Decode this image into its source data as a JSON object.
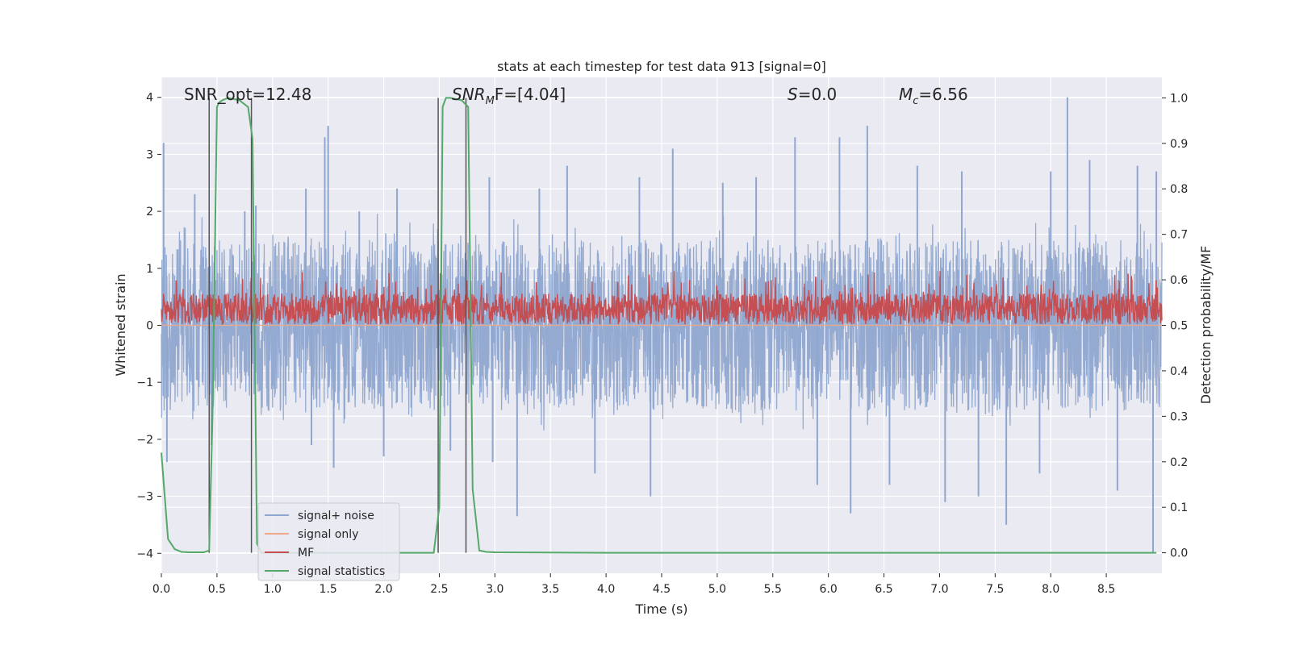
{
  "chart_data": {
    "type": "line",
    "title": "stats at each timestep for test data 913 [signal=0]",
    "xlabel": "Time (s)",
    "ylabel": "Whitened strain",
    "ylabel_right": "Detection probability/MF",
    "xlim": [
      0.0,
      9.0
    ],
    "ylim": [
      -4.35,
      4.35
    ],
    "ylim_right": [
      -0.045,
      1.045
    ],
    "x_ticks": [
      "0.0",
      "0.5",
      "1.0",
      "1.5",
      "2.0",
      "2.5",
      "3.0",
      "3.5",
      "4.0",
      "4.5",
      "5.0",
      "5.5",
      "6.0",
      "6.5",
      "7.0",
      "7.5",
      "8.0",
      "8.5"
    ],
    "x_tick_values": [
      0.0,
      0.5,
      1.0,
      1.5,
      2.0,
      2.5,
      3.0,
      3.5,
      4.0,
      4.5,
      5.0,
      5.5,
      6.0,
      6.5,
      7.0,
      7.5,
      8.0,
      8.5
    ],
    "y_ticks": [
      "4",
      "3",
      "2",
      "1",
      "0",
      "−1",
      "−2",
      "−3",
      "−4"
    ],
    "y_tick_values": [
      4,
      3,
      2,
      1,
      0,
      -1,
      -2,
      -3,
      -4
    ],
    "y_ticks_right": [
      "1.0",
      "0.9",
      "0.8",
      "0.7",
      "0.6",
      "0.5",
      "0.4",
      "0.3",
      "0.2",
      "0.1",
      "0.0"
    ],
    "y_tick_values_right": [
      1.0,
      0.9,
      0.8,
      0.7,
      0.6,
      0.5,
      0.4,
      0.3,
      0.2,
      0.1,
      0.0
    ],
    "grid": true,
    "legend_position": "lower-left",
    "annotations": [
      {
        "text": "SNR_opt=12.48",
        "x": 0.2,
        "y": 4.1
      },
      {
        "text": "F=[4.04]",
        "math_prefix": "SNR",
        "math_sub": "M",
        "x": 2.6,
        "y": 4.1
      },
      {
        "text": "=0.0",
        "math_prefix": "S",
        "math_sub": "",
        "x": 5.6,
        "y": 4.1
      },
      {
        "text": "=6.56",
        "math_prefix": "M",
        "math_sub": "c",
        "x": 6.6,
        "y": 4.1
      }
    ],
    "series": [
      {
        "name": "signal+ noise",
        "color": "#8fa6cf",
        "axis": "left",
        "kind": "dense-noise",
        "typical_band": [
          -1.5,
          1.6
        ],
        "peaks": [
          {
            "x": 0.02,
            "y": 3.2
          },
          {
            "x": 0.05,
            "y": -2.4
          },
          {
            "x": 0.3,
            "y": 2.3
          },
          {
            "x": 0.45,
            "y": -2.1
          },
          {
            "x": 0.75,
            "y": 2.0
          },
          {
            "x": 0.85,
            "y": 2.1
          },
          {
            "x": 1.3,
            "y": 2.4
          },
          {
            "x": 1.35,
            "y": -2.1
          },
          {
            "x": 1.5,
            "y": 3.5
          },
          {
            "x": 1.55,
            "y": -2.5
          },
          {
            "x": 1.47,
            "y": 3.3
          },
          {
            "x": 1.78,
            "y": 2.0
          },
          {
            "x": 2.0,
            "y": -2.3
          },
          {
            "x": 2.12,
            "y": 2.4
          },
          {
            "x": 2.6,
            "y": -2.2
          },
          {
            "x": 2.95,
            "y": 2.6
          },
          {
            "x": 2.98,
            "y": -2.4
          },
          {
            "x": 3.2,
            "y": -3.35
          },
          {
            "x": 3.4,
            "y": 2.4
          },
          {
            "x": 3.65,
            "y": 2.8
          },
          {
            "x": 3.9,
            "y": -2.6
          },
          {
            "x": 4.3,
            "y": 2.6
          },
          {
            "x": 4.4,
            "y": -3.0
          },
          {
            "x": 4.6,
            "y": 3.1
          },
          {
            "x": 5.05,
            "y": 2.5
          },
          {
            "x": 5.35,
            "y": 2.6
          },
          {
            "x": 5.7,
            "y": 3.3
          },
          {
            "x": 5.9,
            "y": -2.8
          },
          {
            "x": 6.1,
            "y": 3.3
          },
          {
            "x": 6.2,
            "y": -3.3
          },
          {
            "x": 6.35,
            "y": 3.5
          },
          {
            "x": 6.55,
            "y": -2.8
          },
          {
            "x": 6.8,
            "y": 2.8
          },
          {
            "x": 7.05,
            "y": -3.1
          },
          {
            "x": 7.2,
            "y": 2.7
          },
          {
            "x": 7.35,
            "y": -3.0
          },
          {
            "x": 7.6,
            "y": -3.5
          },
          {
            "x": 7.9,
            "y": -2.6
          },
          {
            "x": 8.0,
            "y": 2.7
          },
          {
            "x": 8.15,
            "y": 4.0
          },
          {
            "x": 8.35,
            "y": 2.9
          },
          {
            "x": 8.6,
            "y": -2.9
          },
          {
            "x": 8.78,
            "y": 2.8
          },
          {
            "x": 8.95,
            "y": 2.7
          },
          {
            "x": 8.92,
            "y": -4.0
          }
        ]
      },
      {
        "name": "signal only",
        "color": "#f0a987",
        "axis": "left",
        "x": [
          0.0,
          9.0
        ],
        "y": [
          0.0,
          0.0
        ]
      },
      {
        "name": "MF",
        "color": "#c44e52",
        "axis": "right",
        "kind": "dense-noise",
        "typical_band": [
          0.502,
          0.57
        ],
        "max": 0.62,
        "min": 0.5
      },
      {
        "name": "signal statistics",
        "color": "#55a868",
        "axis": "right",
        "x": [
          0.0,
          0.06,
          0.12,
          0.18,
          0.25,
          0.38,
          0.43,
          0.46,
          0.5,
          0.52,
          0.55,
          0.6,
          0.7,
          0.78,
          0.82,
          0.86,
          0.9,
          1.0,
          1.5,
          2.0,
          2.3,
          2.45,
          2.5,
          2.53,
          2.56,
          2.6,
          2.7,
          2.76,
          2.8,
          2.86,
          2.92,
          3.0,
          4.0,
          5.0,
          6.0,
          7.0,
          8.0,
          8.95
        ],
        "y": [
          0.22,
          0.03,
          0.008,
          0.002,
          0.001,
          0.001,
          0.005,
          0.3,
          0.98,
          0.99,
          0.995,
          1.0,
          0.995,
          0.98,
          0.91,
          0.02,
          0.0,
          0.0,
          0.0,
          0.0,
          0.0,
          0.0,
          0.1,
          0.98,
          1.0,
          1.0,
          0.995,
          0.98,
          0.14,
          0.005,
          0.002,
          0.001,
          0.0,
          0.0,
          0.0,
          0.0,
          0.0,
          0.0
        ]
      }
    ],
    "vertical_lines": [
      0.43,
      0.81,
      2.49,
      2.74
    ],
    "vertical_line_color": "#555555"
  }
}
